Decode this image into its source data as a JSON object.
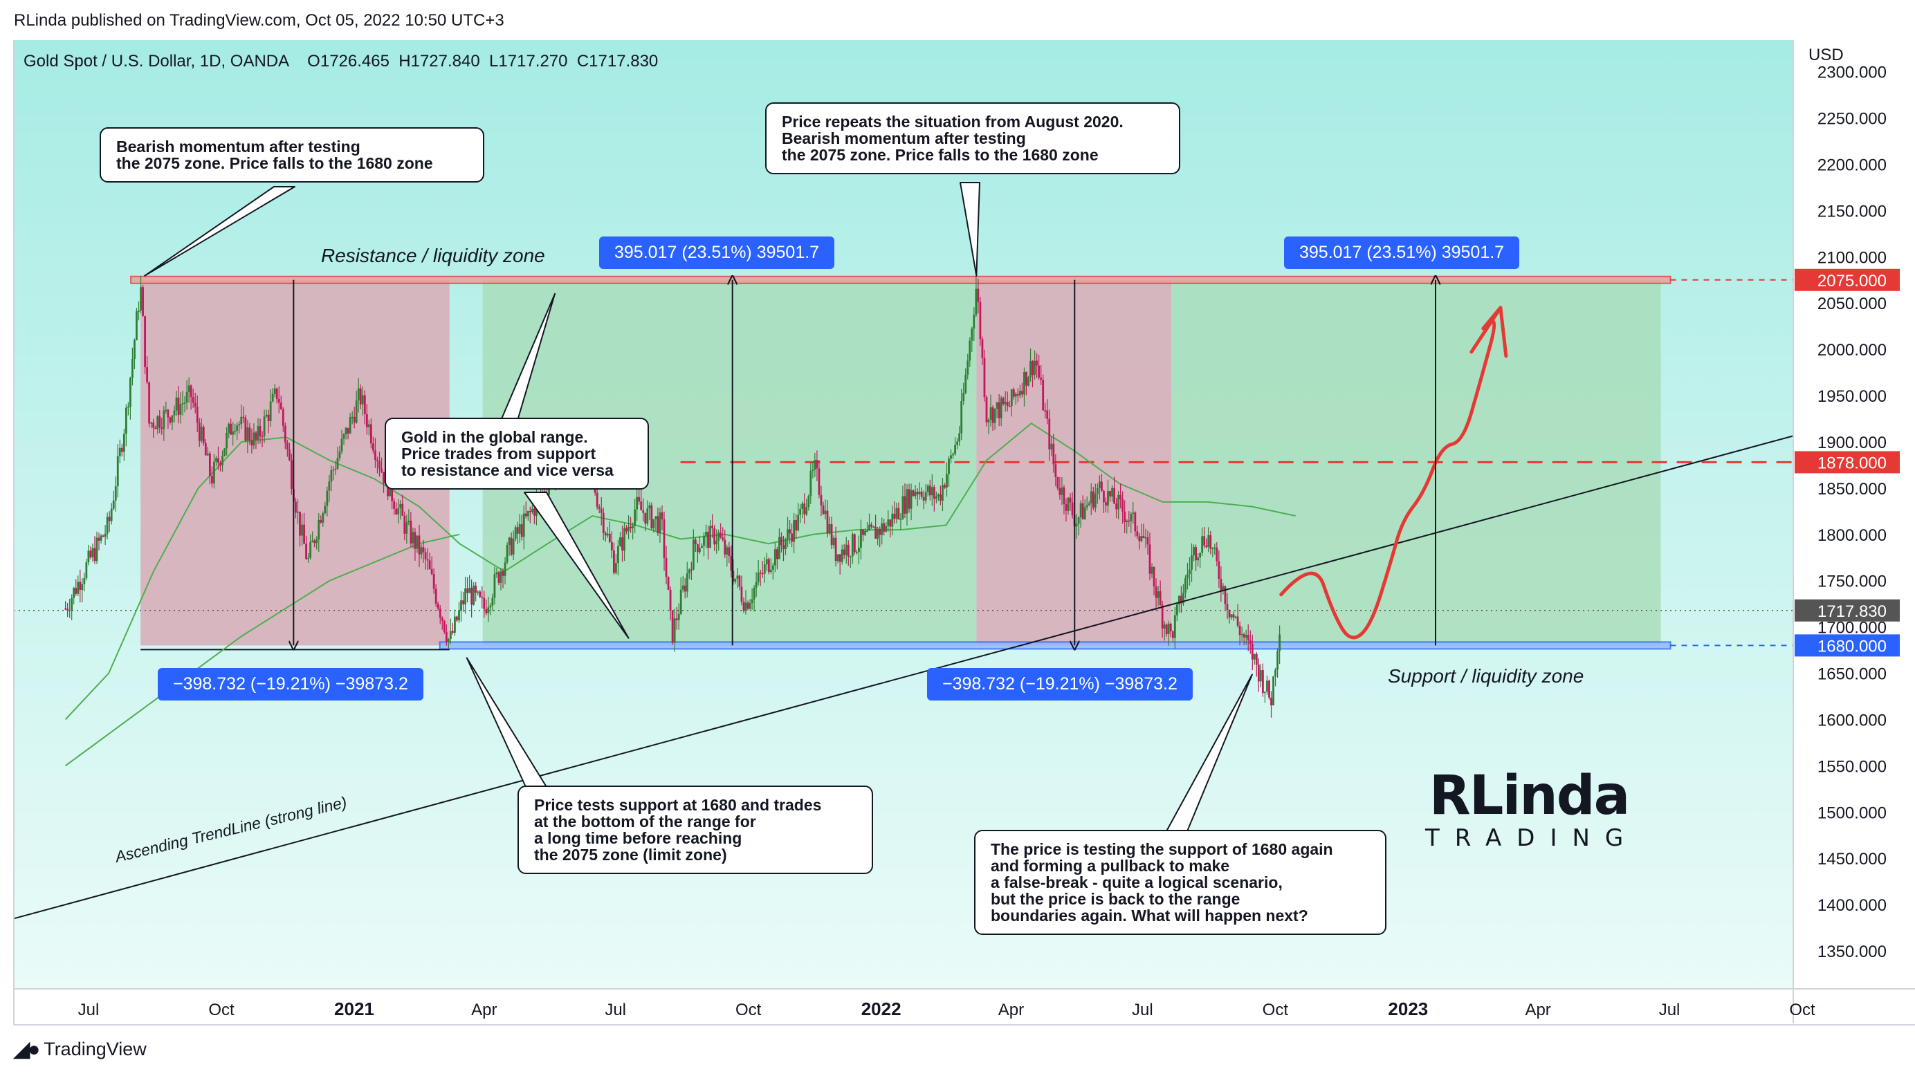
{
  "header": {
    "publisher": "RLinda published on TradingView.com, Oct 05, 2022 10:50 UTC+3",
    "symbol": "Gold Spot / U.S. Dollar, 1D, OANDA",
    "ohlc": "O1726.465  H1727.840  L1717.270  C1717.830"
  },
  "footer": {
    "brand": "TradingView"
  },
  "colors": {
    "resistance": "#e53935",
    "support": "#2962ff",
    "bear_zone": "#d9aab6",
    "bull_zone": "#a8dcb8",
    "ma_line": "#4caf50",
    "bg_top": "#a6ece4",
    "bg_bottom": "#e9fbf8",
    "last_price": "#555555"
  },
  "chart_data": {
    "type": "candlestick",
    "currency": "USD",
    "ylim": [
      1300,
      2320
    ],
    "y_ticks": [
      "2300.000",
      "2250.000",
      "2200.000",
      "2150.000",
      "2100.000",
      "2050.000",
      "2000.000",
      "1950.000",
      "1900.000",
      "1850.000",
      "1800.000",
      "1750.000",
      "1700.000",
      "1650.000",
      "1600.000",
      "1550.000",
      "1500.000",
      "1450.000",
      "1400.000",
      "1350.000"
    ],
    "x_ticks": [
      {
        "label": "Jul",
        "date": "2020-07-01",
        "bold": false
      },
      {
        "label": "Oct",
        "date": "2020-10-01",
        "bold": false
      },
      {
        "label": "2021",
        "date": "2021-01-01",
        "bold": true
      },
      {
        "label": "Apr",
        "date": "2021-04-01",
        "bold": false
      },
      {
        "label": "Jul",
        "date": "2021-07-01",
        "bold": false
      },
      {
        "label": "Oct",
        "date": "2021-10-01",
        "bold": false
      },
      {
        "label": "2022",
        "date": "2022-01-01",
        "bold": true
      },
      {
        "label": "Apr",
        "date": "2022-04-01",
        "bold": false
      },
      {
        "label": "Jul",
        "date": "2022-07-01",
        "bold": false
      },
      {
        "label": "Oct",
        "date": "2022-10-01",
        "bold": false
      },
      {
        "label": "2023",
        "date": "2023-01-01",
        "bold": true
      },
      {
        "label": "Apr",
        "date": "2023-04-01",
        "bold": false
      },
      {
        "label": "Jul",
        "date": "2023-07-01",
        "bold": false
      },
      {
        "label": "Oct",
        "date": "2023-10-01",
        "bold": false
      }
    ],
    "price_series": [
      [
        "2020-06-15",
        1720
      ],
      [
        "2020-07-01",
        1770
      ],
      [
        "2020-07-15",
        1810
      ],
      [
        "2020-07-27",
        1930
      ],
      [
        "2020-08-06",
        2068
      ],
      [
        "2020-08-12",
        1920
      ],
      [
        "2020-08-25",
        1930
      ],
      [
        "2020-09-10",
        1950
      ],
      [
        "2020-09-24",
        1860
      ],
      [
        "2020-10-10",
        1925
      ],
      [
        "2020-10-25",
        1900
      ],
      [
        "2020-11-09",
        1955
      ],
      [
        "2020-11-24",
        1810
      ],
      [
        "2020-11-30",
        1770
      ],
      [
        "2020-12-15",
        1860
      ],
      [
        "2021-01-05",
        1950
      ],
      [
        "2021-01-20",
        1870
      ],
      [
        "2021-02-05",
        1810
      ],
      [
        "2021-02-20",
        1770
      ],
      [
        "2021-03-05",
        1700
      ],
      [
        "2021-03-08",
        1683
      ],
      [
        "2021-03-20",
        1740
      ],
      [
        "2021-04-01",
        1720
      ],
      [
        "2021-04-20",
        1790
      ],
      [
        "2021-05-10",
        1840
      ],
      [
        "2021-06-01",
        1905
      ],
      [
        "2021-06-15",
        1860
      ],
      [
        "2021-06-30",
        1770
      ],
      [
        "2021-07-15",
        1830
      ],
      [
        "2021-08-02",
        1810
      ],
      [
        "2021-08-09",
        1690
      ],
      [
        "2021-08-25",
        1790
      ],
      [
        "2021-09-10",
        1800
      ],
      [
        "2021-09-29",
        1725
      ],
      [
        "2021-10-15",
        1770
      ],
      [
        "2021-11-05",
        1815
      ],
      [
        "2021-11-16",
        1870
      ],
      [
        "2021-11-30",
        1780
      ],
      [
        "2021-12-15",
        1790
      ],
      [
        "2022-01-05",
        1810
      ],
      [
        "2022-01-25",
        1850
      ],
      [
        "2022-02-10",
        1840
      ],
      [
        "2022-02-24",
        1910
      ],
      [
        "2022-03-08",
        2070
      ],
      [
        "2022-03-15",
        1930
      ],
      [
        "2022-03-31",
        1940
      ],
      [
        "2022-04-18",
        1990
      ],
      [
        "2022-05-02",
        1860
      ],
      [
        "2022-05-16",
        1815
      ],
      [
        "2022-06-01",
        1850
      ],
      [
        "2022-06-15",
        1830
      ],
      [
        "2022-07-01",
        1800
      ],
      [
        "2022-07-15",
        1710
      ],
      [
        "2022-07-21",
        1690
      ],
      [
        "2022-08-05",
        1780
      ],
      [
        "2022-08-15",
        1800
      ],
      [
        "2022-08-30",
        1720
      ],
      [
        "2022-09-15",
        1670
      ],
      [
        "2022-09-28",
        1620
      ],
      [
        "2022-10-05",
        1717.83
      ]
    ],
    "ma_series": [
      [
        "2020-06-15",
        1600
      ],
      [
        "2020-07-15",
        1650
      ],
      [
        "2020-08-15",
        1760
      ],
      [
        "2020-09-15",
        1850
      ],
      [
        "2020-10-15",
        1900
      ],
      [
        "2020-11-15",
        1905
      ],
      [
        "2020-12-15",
        1880
      ],
      [
        "2021-01-15",
        1860
      ],
      [
        "2021-02-15",
        1830
      ],
      [
        "2021-03-15",
        1790
      ],
      [
        "2021-04-15",
        1760
      ],
      [
        "2021-05-15",
        1790
      ],
      [
        "2021-06-15",
        1820
      ],
      [
        "2021-07-15",
        1810
      ],
      [
        "2021-08-15",
        1795
      ],
      [
        "2021-09-15",
        1800
      ],
      [
        "2021-10-15",
        1790
      ],
      [
        "2021-11-15",
        1800
      ],
      [
        "2021-12-15",
        1805
      ],
      [
        "2022-01-15",
        1805
      ],
      [
        "2022-02-15",
        1810
      ],
      [
        "2022-03-15",
        1880
      ],
      [
        "2022-04-15",
        1920
      ],
      [
        "2022-05-15",
        1890
      ],
      [
        "2022-06-15",
        1855
      ],
      [
        "2022-07-15",
        1835
      ],
      [
        "2022-08-15",
        1835
      ],
      [
        "2022-09-15",
        1830
      ],
      [
        "2022-10-15",
        1820
      ]
    ],
    "long_ma_series": [
      [
        "2020-06-15",
        1550
      ],
      [
        "2020-08-15",
        1620
      ],
      [
        "2020-10-15",
        1690
      ],
      [
        "2020-12-15",
        1750
      ],
      [
        "2021-02-15",
        1790
      ],
      [
        "2021-03-15",
        1800
      ]
    ],
    "resistance": {
      "price": 2075,
      "label": "2075.000"
    },
    "support": {
      "price": 1680,
      "label": "1680.000"
    },
    "mid_level": {
      "price": 1878,
      "label": "1878.000"
    },
    "last_price": {
      "price": 1717.83,
      "label": "1717.830"
    },
    "zones": [
      {
        "type": "bear",
        "start": "2020-08-06",
        "end": "2021-03-08"
      },
      {
        "type": "bull",
        "start": "2021-03-31",
        "end": "2022-03-08"
      },
      {
        "type": "bear",
        "start": "2022-03-08",
        "end": "2022-07-21"
      },
      {
        "type": "bull",
        "start": "2022-07-21",
        "end": "2023-06-25"
      }
    ],
    "trendline": {
      "p1": [
        "2020-06-15",
        1400
      ],
      "p2": [
        "2023-10-15",
        1915
      ]
    },
    "forecast_path": [
      [
        "2022-10-05",
        1735
      ],
      [
        "2022-10-28",
        1775
      ],
      [
        "2022-11-10",
        1715
      ],
      [
        "2022-11-22",
        1683
      ],
      [
        "2022-12-06",
        1700
      ],
      [
        "2022-12-20",
        1770
      ],
      [
        "2022-12-28",
        1815
      ],
      [
        "2023-01-12",
        1845
      ],
      [
        "2023-01-24",
        1895
      ],
      [
        "2023-02-08",
        1900
      ],
      [
        "2023-02-20",
        1965
      ],
      [
        "2023-03-06",
        2045
      ],
      [
        "2023-02-10",
        2000
      ]
    ],
    "measure_arrows": [
      {
        "date": "2020-11-20",
        "from": 2075,
        "to": 1680
      },
      {
        "date": "2021-09-20",
        "from": 1680,
        "to": 2075
      },
      {
        "date": "2022-05-15",
        "from": 2075,
        "to": 1680
      },
      {
        "date": "2023-01-20",
        "from": 1680,
        "to": 2075
      }
    ],
    "measure_labels": {
      "up": "395.017 (23.51%) 39501.7",
      "down": "−398.732 (−19.21%) −39873.2"
    },
    "zone_labels": {
      "resistance": "Resistance / liquidity zone",
      "support": "Support / liquidity zone",
      "trendline": "Ascending TrendLine (strong line)"
    },
    "annotations": [
      "Bearish momentum after testing\nthe 2075 zone. Price falls to the 1680 zone",
      "Price repeats the situation from August 2020.\nBearish momentum after testing\nthe 2075 zone. Price falls to the 1680 zone",
      "Gold in the global range.\nPrice trades from support\nto resistance and vice versa",
      "Price tests support at 1680 and trades\nat the bottom of the range for\na long time before reaching\nthe 2075 zone (limit zone)",
      "The price is testing the support of 1680 again\nand forming a pullback to make\na false-break - quite a logical scenario,\nbut the price is back to the range\nboundaries again. What will happen next?"
    ]
  },
  "watermark": {
    "text": "RLinda",
    "subtext": "TRADING"
  }
}
